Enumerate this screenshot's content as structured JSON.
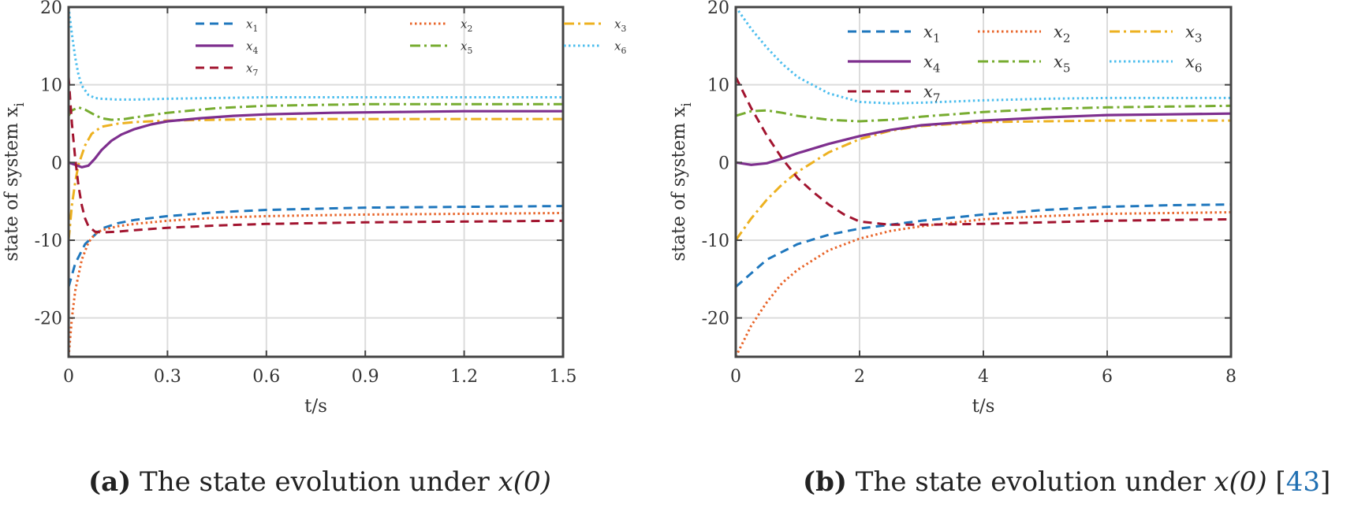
{
  "colors": {
    "x1": "#1f77bd",
    "x2": "#e8652a",
    "x3": "#edb120",
    "x4": "#7e2f8e",
    "x5": "#77ac30",
    "x6": "#4dbeee",
    "x7": "#a2142f",
    "axis": "#444444",
    "grid": "#dcdcdc"
  },
  "captions": {
    "a": {
      "label": "(a)",
      "text": " The state evolution under ",
      "math": "x(0)"
    },
    "b": {
      "label": "(b)",
      "text": " The state evolution under ",
      "math": "x(0)",
      "ref_open": " [",
      "ref": "43",
      "ref_close": "]"
    }
  },
  "chart_data": [
    {
      "id": "a",
      "type": "line",
      "title": "",
      "xlabel": "t/s",
      "ylabel": "state of system x",
      "ylabel_sub": "i",
      "xlim": [
        0,
        1.5
      ],
      "ylim": [
        -25,
        20
      ],
      "xticks": [
        0,
        0.3,
        0.6,
        0.9,
        1.2,
        1.5
      ],
      "xtick_labels": [
        "0",
        "0.3",
        "0.6",
        "0.9",
        "1.2",
        "1.5"
      ],
      "yticks": [
        -20,
        -10,
        0,
        10,
        20
      ],
      "ytick_labels": [
        "-20",
        "-10",
        "0",
        "10",
        "20"
      ],
      "grid": true,
      "legend": {
        "placement": "top-right",
        "columns": 3
      },
      "series": [
        {
          "name": "x",
          "sub": "1",
          "style": "dashed",
          "x": [
            0,
            0.02,
            0.05,
            0.1,
            0.15,
            0.2,
            0.3,
            0.45,
            0.6,
            0.9,
            1.2,
            1.5
          ],
          "y": [
            -16,
            -13,
            -10.5,
            -8.5,
            -7.8,
            -7.4,
            -6.9,
            -6.4,
            -6.1,
            -5.8,
            -5.7,
            -5.6
          ]
        },
        {
          "name": "x",
          "sub": "2",
          "style": "dotted",
          "x": [
            0,
            0.01,
            0.02,
            0.04,
            0.06,
            0.08,
            0.1,
            0.15,
            0.2,
            0.3,
            0.45,
            0.6,
            0.9,
            1.2,
            1.5
          ],
          "y": [
            -25,
            -20,
            -16.5,
            -12.5,
            -10.3,
            -9.2,
            -8.7,
            -8.2,
            -7.9,
            -7.5,
            -7.1,
            -6.9,
            -6.7,
            -6.6,
            -6.5
          ]
        },
        {
          "name": "x",
          "sub": "3",
          "style": "dashdot",
          "x": [
            0,
            0.01,
            0.02,
            0.03,
            0.05,
            0.07,
            0.1,
            0.15,
            0.2,
            0.3,
            0.45,
            0.6,
            0.9,
            1.2,
            1.5
          ],
          "y": [
            -10,
            -5.5,
            -2.5,
            -0.3,
            2.2,
            3.7,
            4.6,
            5.0,
            5.2,
            5.4,
            5.5,
            5.6,
            5.6,
            5.6,
            5.6
          ]
        },
        {
          "name": "x",
          "sub": "4",
          "style": "solid",
          "x": [
            0,
            0.02,
            0.04,
            0.06,
            0.08,
            0.1,
            0.13,
            0.16,
            0.2,
            0.25,
            0.3,
            0.4,
            0.5,
            0.6,
            0.8,
            1.0,
            1.2,
            1.5
          ],
          "y": [
            0,
            -0.3,
            -0.6,
            -0.4,
            0.5,
            1.6,
            2.8,
            3.6,
            4.3,
            4.9,
            5.3,
            5.7,
            6.0,
            6.2,
            6.4,
            6.5,
            6.6,
            6.6
          ]
        },
        {
          "name": "x",
          "sub": "5",
          "style": "dashdot",
          "x": [
            0,
            0.01,
            0.03,
            0.05,
            0.08,
            0.1,
            0.13,
            0.17,
            0.2,
            0.3,
            0.45,
            0.6,
            0.9,
            1.2,
            1.5
          ],
          "y": [
            6,
            6.7,
            7.1,
            6.8,
            6.1,
            5.7,
            5.5,
            5.6,
            5.8,
            6.4,
            7.0,
            7.3,
            7.5,
            7.5,
            7.5
          ]
        },
        {
          "name": "x",
          "sub": "6",
          "style": "dotted",
          "x": [
            0,
            0.01,
            0.02,
            0.03,
            0.04,
            0.06,
            0.08,
            0.1,
            0.15,
            0.2,
            0.3,
            0.45,
            0.6,
            0.9,
            1.2,
            1.5
          ],
          "y": [
            20,
            16.5,
            13.5,
            11.3,
            9.9,
            8.7,
            8.3,
            8.2,
            8.1,
            8.1,
            8.2,
            8.3,
            8.4,
            8.4,
            8.4,
            8.4
          ]
        },
        {
          "name": "x",
          "sub": "7",
          "style": "dashed",
          "x": [
            0,
            0.005,
            0.01,
            0.02,
            0.03,
            0.04,
            0.05,
            0.06,
            0.08,
            0.1,
            0.15,
            0.2,
            0.3,
            0.45,
            0.6,
            0.9,
            1.2,
            1.5
          ],
          "y": [
            11,
            8,
            5,
            0.5,
            -3,
            -5.5,
            -7.2,
            -8.2,
            -8.9,
            -9.0,
            -8.9,
            -8.7,
            -8.4,
            -8.1,
            -7.9,
            -7.7,
            -7.6,
            -7.5
          ]
        }
      ]
    },
    {
      "id": "b",
      "type": "line",
      "title": "",
      "xlabel": "t/s",
      "ylabel": "state of system x",
      "ylabel_sub": "i",
      "xlim": [
        0,
        8
      ],
      "ylim": [
        -25,
        20
      ],
      "xticks": [
        0,
        2,
        4,
        6,
        8
      ],
      "xtick_labels": [
        "0",
        "2",
        "4",
        "6",
        "8"
      ],
      "yticks": [
        -20,
        -10,
        0,
        10,
        20
      ],
      "ytick_labels": [
        "-20",
        "-10",
        "0",
        "10",
        "20"
      ],
      "grid": true,
      "legend": {
        "placement": "top-right",
        "columns": 3
      },
      "series": [
        {
          "name": "x",
          "sub": "1",
          "style": "dashed",
          "x": [
            0,
            0.5,
            1,
            1.5,
            2,
            3,
            4,
            5,
            6,
            7,
            8
          ],
          "y": [
            -16,
            -12.5,
            -10.5,
            -9.3,
            -8.5,
            -7.5,
            -6.7,
            -6.1,
            -5.7,
            -5.5,
            -5.4
          ]
        },
        {
          "name": "x",
          "sub": "2",
          "style": "dotted",
          "x": [
            0,
            0.25,
            0.5,
            0.75,
            1,
            1.5,
            2,
            2.5,
            3,
            4,
            5,
            6,
            7,
            8
          ],
          "y": [
            -25,
            -21,
            -18,
            -15.5,
            -13.8,
            -11.3,
            -9.8,
            -8.8,
            -8.2,
            -7.3,
            -6.9,
            -6.6,
            -6.5,
            -6.4
          ]
        },
        {
          "name": "x",
          "sub": "3",
          "style": "dashdot",
          "x": [
            0,
            0.25,
            0.5,
            0.75,
            1,
            1.5,
            2,
            2.5,
            3,
            4,
            5,
            6,
            7,
            8
          ],
          "y": [
            -10,
            -7.2,
            -4.8,
            -2.8,
            -1.2,
            1.3,
            3.0,
            4.1,
            4.7,
            5.2,
            5.3,
            5.4,
            5.4,
            5.4
          ]
        },
        {
          "name": "x",
          "sub": "4",
          "style": "solid",
          "x": [
            0,
            0.25,
            0.5,
            0.75,
            1,
            1.5,
            2,
            2.5,
            3,
            4,
            5,
            6,
            7,
            8
          ],
          "y": [
            0,
            -0.3,
            -0.1,
            0.5,
            1.2,
            2.4,
            3.4,
            4.2,
            4.8,
            5.4,
            5.8,
            6.1,
            6.2,
            6.3
          ]
        },
        {
          "name": "x",
          "sub": "5",
          "style": "dashdot",
          "x": [
            0,
            0.25,
            0.5,
            0.75,
            1,
            1.5,
            2,
            2.5,
            3,
            4,
            5,
            6,
            7,
            8
          ],
          "y": [
            6,
            6.6,
            6.7,
            6.4,
            6.0,
            5.5,
            5.3,
            5.5,
            5.9,
            6.5,
            6.9,
            7.1,
            7.2,
            7.3
          ]
        },
        {
          "name": "x",
          "sub": "6",
          "style": "dotted",
          "x": [
            0,
            0.25,
            0.5,
            0.75,
            1,
            1.5,
            2,
            2.5,
            3,
            4,
            5,
            6,
            7,
            8
          ],
          "y": [
            20,
            17.2,
            14.8,
            12.7,
            11.0,
            8.9,
            7.8,
            7.6,
            7.7,
            8.0,
            8.2,
            8.3,
            8.3,
            8.3
          ]
        },
        {
          "name": "x",
          "sub": "7",
          "style": "dashed",
          "x": [
            0,
            0.25,
            0.5,
            0.75,
            1,
            1.25,
            1.5,
            1.75,
            2,
            2.5,
            3,
            4,
            5,
            6,
            7,
            8
          ],
          "y": [
            11,
            7,
            3.5,
            0.5,
            -2,
            -3.8,
            -5.4,
            -6.7,
            -7.6,
            -8.0,
            -8.0,
            -7.9,
            -7.7,
            -7.5,
            -7.4,
            -7.3
          ]
        }
      ]
    }
  ]
}
